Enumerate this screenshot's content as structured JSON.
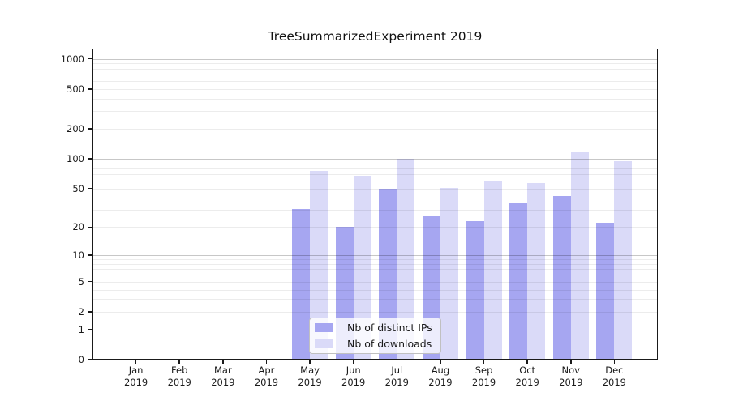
{
  "title": "TreeSummarizedExperiment 2019",
  "chart_data": {
    "type": "bar",
    "title": "TreeSummarizedExperiment 2019",
    "categories": [
      "Jan 2019",
      "Feb 2019",
      "Mar 2019",
      "Apr 2019",
      "May 2019",
      "Jun 2019",
      "Jul 2019",
      "Aug 2019",
      "Sep 2019",
      "Oct 2019",
      "Nov 2019",
      "Dec 2019"
    ],
    "series": [
      {
        "name": "Nb of distinct IPs",
        "color": "#a6a6f1",
        "values": [
          0,
          0,
          0,
          0,
          31,
          20,
          50,
          26,
          23,
          35,
          42,
          22
        ]
      },
      {
        "name": "Nb of downloads",
        "color": "#dadaf8",
        "values": [
          0,
          0,
          0,
          0,
          76,
          67,
          100,
          51,
          60,
          57,
          117,
          95
        ]
      }
    ],
    "xlabel": "",
    "ylabel": "",
    "yscale": "symlog-log1p",
    "yticks": [
      0,
      1,
      2,
      5,
      10,
      20,
      50,
      100,
      200,
      500,
      1000
    ],
    "ylim": [
      0,
      1000
    ],
    "grid": true,
    "legend_position": "inside-bottom-center"
  },
  "colors": {
    "major_grid": "#c8c8c8",
    "minor_grid": "#ededed",
    "text": "#1a1a1a",
    "spine": "#1a1a1a",
    "legend_border": "#c0c0c0"
  }
}
